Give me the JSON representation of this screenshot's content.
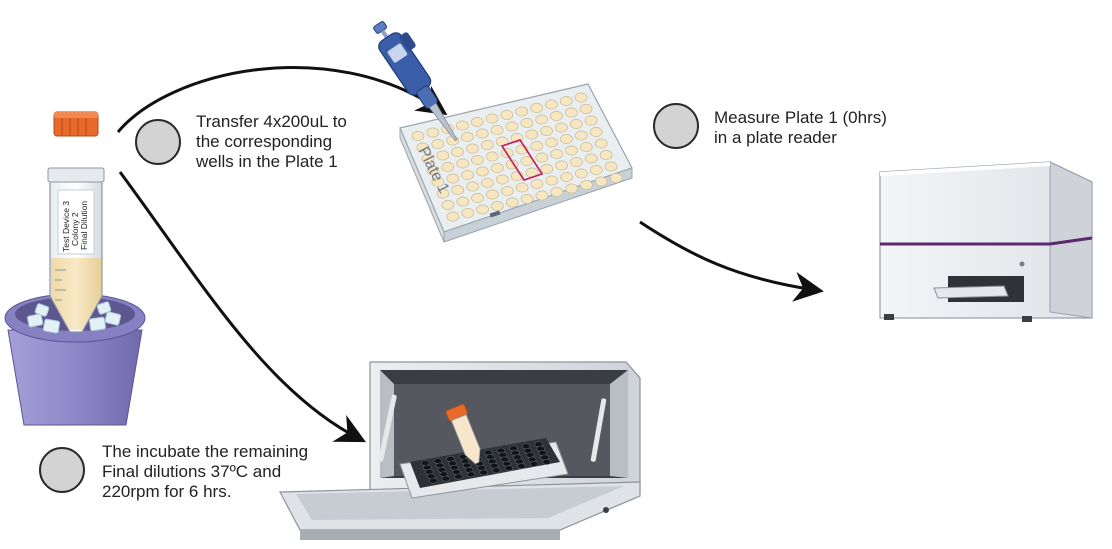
{
  "colors": {
    "arrow": "#111111",
    "circle_fill": "#d3d3d3",
    "circle_stroke": "#2a2a2a",
    "plate_outline": "#c2185b",
    "tube_cap": "#e8692a",
    "ice_bucket": "#8e86c9",
    "pipette": "#3b5ea8",
    "reader_accent": "#5b2a6e"
  },
  "steps": [
    {
      "lines": [
        "Transfer 4x200uL to",
        "the corresponding",
        "wells in the Plate 1"
      ]
    },
    {
      "lines": [
        "Measure Plate 1 (0hrs)",
        "in a plate reader"
      ]
    },
    {
      "lines": [
        "The incubate the remaining",
        "Final dilutions 37ºC and",
        "220rpm for 6 hrs."
      ]
    }
  ],
  "labels": {
    "tube_label": [
      "Test Device 3",
      "Colony 2",
      "Final Dilution"
    ],
    "plate_label": "Plate 1"
  },
  "icons": [
    "ice-bucket-icon",
    "falcon-tube-icon",
    "pipette-icon",
    "well-plate-icon",
    "plate-reader-icon",
    "incubator-icon"
  ]
}
